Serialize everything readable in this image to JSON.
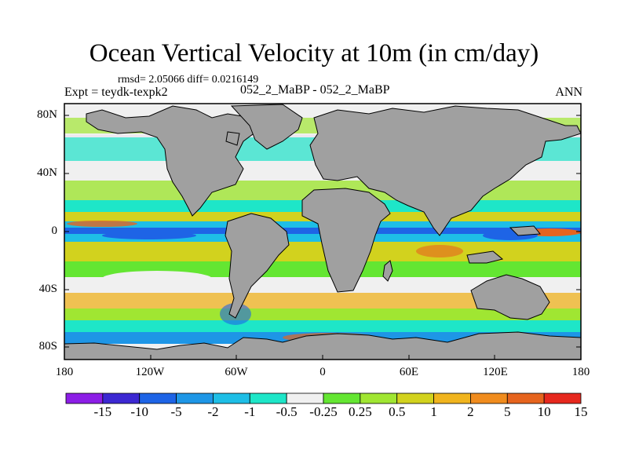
{
  "title": "Ocean Vertical Velocity at 10m (in cm/day)",
  "stats": "rmsd= 2.05066 diff= 0.0216149",
  "left_label": "Expt = teydk-texpk2",
  "center_label": "052_2_MaBP - 052_2_MaBP",
  "right_label": "ANN",
  "lat_labels": [
    "80N",
    "40N",
    "0",
    "40S",
    "80S"
  ],
  "lon_labels": [
    "180",
    "120W",
    "60W",
    "0",
    "60E",
    "120E",
    "180"
  ],
  "colorbar": {
    "labels": [
      "-15",
      "-10",
      "-5",
      "-2",
      "-1",
      "-0.5",
      "-0.25",
      "0.25",
      "0.5",
      "1",
      "2",
      "5",
      "10",
      "15"
    ],
    "colors": [
      "#8c1ee6",
      "#3c28d2",
      "#1e64e6",
      "#1e96e6",
      "#1ebee6",
      "#1ee6c8",
      "#f0f0f0",
      "#64e632",
      "#a0e632",
      "#d2d21e",
      "#f0b41e",
      "#f08c1e",
      "#e6641e",
      "#e6281e"
    ]
  },
  "colors": {
    "land": "#a0a0a0",
    "background": "#ffffff"
  }
}
